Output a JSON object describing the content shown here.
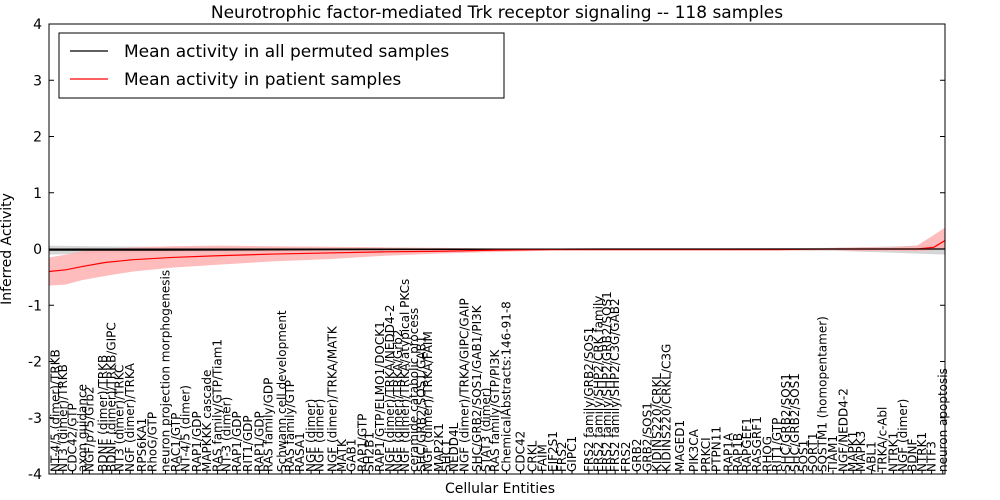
{
  "chart_data": {
    "type": "line",
    "title": "Neurotrophic factor-mediated Trk receptor signaling -- 118 samples",
    "xlabel": "Cellular Entities",
    "ylabel": "Inferred Activity",
    "ylim": [
      -4,
      4
    ],
    "yticks": [
      -4,
      -3,
      -2,
      -1,
      0,
      1,
      2,
      3,
      4
    ],
    "grid": false,
    "legend_position": "top-left",
    "series": [
      {
        "name": "Mean activity in all permuted samples",
        "color": "#000000",
        "band_color": "#c8c8c8",
        "points": [
          [
            0,
            -0.02
          ],
          [
            20,
            -0.02
          ],
          [
            60,
            -0.01
          ],
          [
            100,
            0.0
          ],
          [
            140,
            0.0
          ],
          [
            160,
            0.0
          ]
        ],
        "band": [
          [
            0,
            -0.1,
            0.06
          ],
          [
            8,
            -0.08,
            0.05
          ],
          [
            20,
            -0.07,
            0.04
          ],
          [
            40,
            -0.05,
            0.03
          ],
          [
            60,
            -0.03,
            0.02
          ],
          [
            80,
            -0.02,
            0.01
          ],
          [
            100,
            -0.02,
            0.01
          ],
          [
            120,
            -0.02,
            0.01
          ],
          [
            140,
            -0.03,
            0.02
          ],
          [
            152,
            -0.07,
            0.05
          ],
          [
            160,
            -0.1,
            0.08
          ]
        ]
      },
      {
        "name": "Mean activity in patient samples",
        "color": "#ff0000",
        "band_color": "#ffb0b0",
        "points": [
          [
            0,
            -0.4
          ],
          [
            3,
            -0.37
          ],
          [
            6,
            -0.31
          ],
          [
            10,
            -0.24
          ],
          [
            15,
            -0.19
          ],
          [
            22,
            -0.15
          ],
          [
            30,
            -0.12
          ],
          [
            40,
            -0.09
          ],
          [
            50,
            -0.07
          ],
          [
            60,
            -0.05
          ],
          [
            70,
            -0.04
          ],
          [
            80,
            -0.02
          ],
          [
            90,
            -0.01
          ],
          [
            100,
            -0.01
          ],
          [
            110,
            -0.01
          ],
          [
            120,
            -0.01
          ],
          [
            130,
            -0.01
          ],
          [
            140,
            0.0
          ],
          [
            150,
            0.0
          ],
          [
            155,
            0.0
          ],
          [
            158,
            0.03
          ],
          [
            160,
            0.15
          ]
        ],
        "band": [
          [
            0,
            -0.65,
            -0.15
          ],
          [
            3,
            -0.63,
            -0.1
          ],
          [
            6,
            -0.55,
            -0.04
          ],
          [
            10,
            -0.48,
            0.0
          ],
          [
            15,
            -0.4,
            0.03
          ],
          [
            22,
            -0.33,
            0.05
          ],
          [
            30,
            -0.28,
            0.06
          ],
          [
            40,
            -0.22,
            0.05
          ],
          [
            50,
            -0.18,
            0.04
          ],
          [
            60,
            -0.12,
            0.03
          ],
          [
            70,
            -0.08,
            0.02
          ],
          [
            80,
            -0.05,
            0.01
          ],
          [
            90,
            -0.03,
            0.0
          ],
          [
            100,
            -0.03,
            0.0
          ],
          [
            110,
            -0.03,
            0.0
          ],
          [
            120,
            -0.03,
            0.0
          ],
          [
            130,
            -0.03,
            0.0
          ],
          [
            140,
            -0.02,
            0.02
          ],
          [
            145,
            -0.04,
            0.03
          ],
          [
            150,
            -0.03,
            0.03
          ],
          [
            155,
            -0.04,
            0.06
          ],
          [
            158,
            -0.02,
            0.25
          ],
          [
            160,
            0.0,
            0.38
          ]
        ]
      }
    ],
    "entity_labels": [
      {
        "x": 1.2,
        "text": "NT-4/5 (dimer)/TRKB"
      },
      {
        "x": 2.5,
        "text": "NT3 (dimer)/TRKB"
      },
      {
        "x": 4.2,
        "text": "CDC42/GTP"
      },
      {
        "x": 6.0,
        "text": "axon guidance"
      },
      {
        "x": 7.2,
        "text": "NGF/p75/Grb2"
      },
      {
        "x": 9.6,
        "text": "BDNF (dimer)/TRKB"
      },
      {
        "x": 11.2,
        "text": "BDNF (dimer)/TRKB/GIPC"
      },
      {
        "x": 12.6,
        "text": "NT3 (dimer)/TRKC"
      },
      {
        "x": 14.5,
        "text": "NGF (dimer)/TRKA"
      },
      {
        "x": 16.6,
        "text": "RPS6KA1"
      },
      {
        "x": 18.5,
        "text": "RhoG/GTP"
      },
      {
        "x": 20.8,
        "text": "neuron projection morphogenesis"
      },
      {
        "x": 22.7,
        "text": "RAC1/GTP"
      },
      {
        "x": 24.4,
        "text": "NT-4/5 (dimer)"
      },
      {
        "x": 26.4,
        "text": "RAP1/GDP"
      },
      {
        "x": 28.2,
        "text": "MAPKKK cascade"
      },
      {
        "x": 30.1,
        "text": "RAS family/GTP/Tiam1"
      },
      {
        "x": 31.7,
        "text": "NT-3 (dimer)"
      },
      {
        "x": 33.6,
        "text": "RAP1/GDP"
      },
      {
        "x": 35.5,
        "text": "RIT1/GDP"
      },
      {
        "x": 37.6,
        "text": "RAP1/GDP"
      },
      {
        "x": 39.2,
        "text": "RAS family/GDP"
      },
      {
        "x": 41.6,
        "text": "Schwann cell development"
      },
      {
        "x": 43.0,
        "text": "RAS family/GTP"
      },
      {
        "x": 44.8,
        "text": "RASA1"
      },
      {
        "x": 46.8,
        "text": "NGF (dimer)"
      },
      {
        "x": 48.3,
        "text": "NGF (dimer)"
      },
      {
        "x": 50.6,
        "text": "NGF (dimer)/TRKA/MATK"
      },
      {
        "x": 52.3,
        "text": "MATK"
      },
      {
        "x": 54.0,
        "text": "GAB1"
      },
      {
        "x": 56.0,
        "text": "RAP1/GTP"
      },
      {
        "x": 57.2,
        "text": "SH2B1"
      },
      {
        "x": 59.1,
        "text": "RAP1/GTP/ELMO1/DOCK1"
      },
      {
        "x": 60.9,
        "text": "NGF (dimer)/TRKA/NEDD4-2"
      },
      {
        "x": 62.3,
        "text": "NGF (dimer)/TRKA/Grb2"
      },
      {
        "x": 63.6,
        "text": "NGF (dimer)/TRKA/atypical PKCs"
      },
      {
        "x": 65.2,
        "text": "ceramide catabolic process"
      },
      {
        "x": 66.5,
        "text": "SHC/GRB2/SOS1/GAB1"
      },
      {
        "x": 67.7,
        "text": "NGF (dimer)/TRKA/FAIM"
      },
      {
        "x": 69.6,
        "text": "MAP2K1"
      },
      {
        "x": 71.0,
        "text": "SHC1"
      },
      {
        "x": 72.3,
        "text": "NEDD4L"
      },
      {
        "x": 74.2,
        "text": "NGF (dimer)/TRKA/GIPC/GAIP"
      },
      {
        "x": 76.4,
        "text": "SHC/GRB2/SOS1/GAB1/PI3K"
      },
      {
        "x": 78.0,
        "text": "STAT3 (dimer)"
      },
      {
        "x": 79.6,
        "text": "RAS family/GTP/PI3K"
      },
      {
        "x": 81.7,
        "text": "ChemicalAbstracts:146-91-8"
      },
      {
        "x": 84.2,
        "text": "CDC42"
      },
      {
        "x": 86.3,
        "text": "CRKL"
      },
      {
        "x": 88.1,
        "text": "FAIM"
      },
      {
        "x": 90.0,
        "text": "EIF2S1"
      },
      {
        "x": 91.6,
        "text": "FRS2"
      },
      {
        "x": 93.4,
        "text": "GIPC1"
      },
      {
        "x": 96.4,
        "text": "FRS2 family/GRB2/SOS1"
      },
      {
        "x": 98.1,
        "text": "FRS2 family/SHP2/CRK family"
      },
      {
        "x": 99.6,
        "text": "FRS2 family/SHP2/GRB2/SOS1"
      },
      {
        "x": 101.1,
        "text": "FRS2 family/SHP2/C3G/GAB2"
      },
      {
        "x": 103.0,
        "text": "FRS2"
      },
      {
        "x": 105.0,
        "text": "GRB2"
      },
      {
        "x": 106.9,
        "text": "GRB2/SOS1"
      },
      {
        "x": 108.6,
        "text": "KIDINS220/CRKL"
      },
      {
        "x": 110.3,
        "text": "KIDINS220/CRKL/C3G"
      },
      {
        "x": 112.7,
        "text": "MAGED1"
      },
      {
        "x": 115.2,
        "text": "PIK3CA"
      },
      {
        "x": 117.3,
        "text": "PRKCI"
      },
      {
        "x": 119.2,
        "text": "PTPN11"
      },
      {
        "x": 121.3,
        "text": "RAP1A"
      },
      {
        "x": 123.0,
        "text": "RAP1B"
      },
      {
        "x": 124.6,
        "text": "RAPGEF1"
      },
      {
        "x": 126.4,
        "text": "RASGRF1"
      },
      {
        "x": 128.3,
        "text": "RHOG"
      },
      {
        "x": 130.0,
        "text": "RIT1/GTP"
      },
      {
        "x": 131.6,
        "text": "SHC/GRB2/SOS1"
      },
      {
        "x": 133.2,
        "text": "SHC/GRB2/SOS1"
      },
      {
        "x": 134.7,
        "text": "SOS1"
      },
      {
        "x": 136.4,
        "text": "SORT1"
      },
      {
        "x": 138.1,
        "text": "SQSTM1 (homopentamer)"
      },
      {
        "x": 140.0,
        "text": "TIAM1"
      },
      {
        "x": 141.9,
        "text": "NGF/NEDD4-2"
      },
      {
        "x": 143.6,
        "text": "MAPK1"
      },
      {
        "x": 145.0,
        "text": "MAPK3"
      },
      {
        "x": 146.9,
        "text": "ABL1"
      },
      {
        "x": 148.8,
        "text": "TRKA/c-Abl"
      },
      {
        "x": 150.8,
        "text": "NTRK1"
      },
      {
        "x": 152.5,
        "text": "NGF (dimer)"
      },
      {
        "x": 154.2,
        "text": "BDNF"
      },
      {
        "x": 155.9,
        "text": "NTRK1"
      },
      {
        "x": 157.6,
        "text": "NTF3"
      },
      {
        "x": 159.6,
        "text": "neuron apoptosis"
      }
    ]
  }
}
